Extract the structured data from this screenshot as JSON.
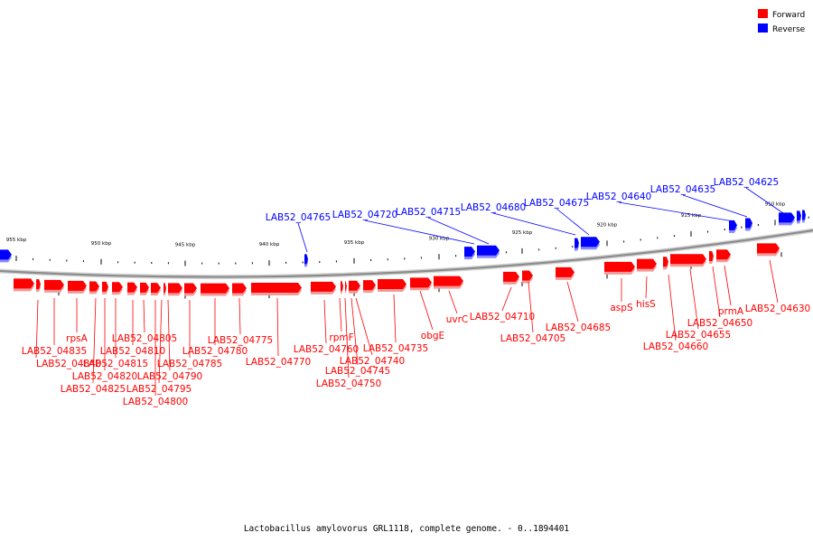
{
  "caption": "Lactobacillus amylovorus GRL1118, complete genome. - 0..1894401",
  "colors": {
    "forward": "#ff0000",
    "reverse": "#0000ff",
    "backbone": "#8c8c8c"
  },
  "legend": [
    {
      "label": "Forward",
      "strand": "forward"
    },
    {
      "label": "Reverse",
      "strand": "reverse"
    }
  ],
  "ticks": [
    "955 kbp",
    "950 kbp",
    "945 kbp",
    "940 kbp",
    "935 kbp",
    "930 kbp",
    "925 kbp",
    "920 kbp",
    "915 kbp",
    "910 kbp"
  ],
  "forward_labels": [
    "LAB52_04840",
    "LAB52_04835",
    "rpsA",
    "LAB52_04825",
    "LAB52_04820",
    "LAB52_04815",
    "LAB52_04810",
    "LAB52_04805",
    "LAB52_04800",
    "LAB52_04795",
    "LAB52_04790",
    "LAB52_04785",
    "LAB52_04780",
    "LAB52_04775",
    "LAB52_04770",
    "LAB52_04760",
    "rpmF",
    "LAB52_04750",
    "LAB52_04745",
    "LAB52_04740",
    "LAB52_04735",
    "obgE",
    "uvrC",
    "LAB52_04710",
    "LAB52_04705",
    "LAB52_04685",
    "aspS",
    "hisS",
    "LAB52_04660",
    "LAB52_04655",
    "LAB52_04650",
    "prmA",
    "LAB52_04630"
  ],
  "reverse_labels": [
    "LAB52_04765",
    "LAB52_04720",
    "LAB52_04715",
    "LAB52_04680",
    "LAB52_04675",
    "LAB52_04640",
    "LAB52_04635",
    "LAB52_04625"
  ]
}
